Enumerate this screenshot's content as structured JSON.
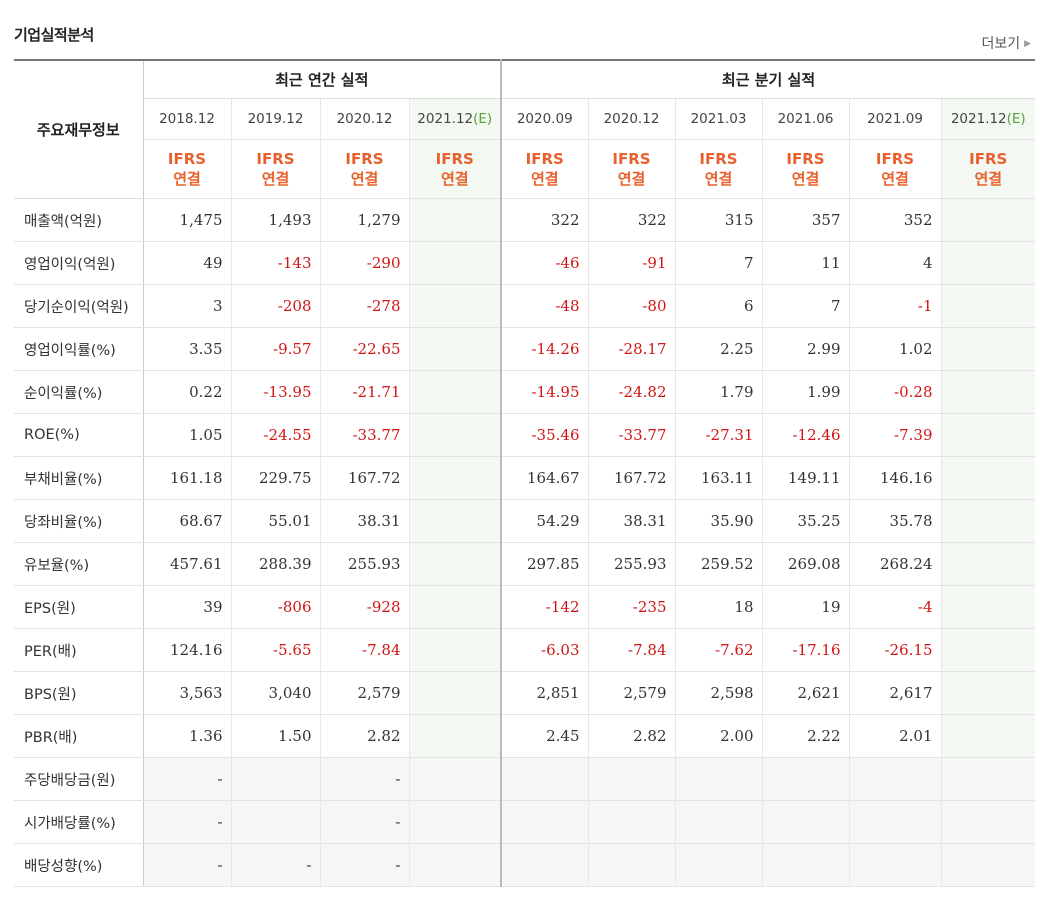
{
  "section_title": "기업실적분석",
  "more_label": "더보기",
  "header": {
    "row_label": "주요재무정보",
    "annual_label": "최근 연간 실적",
    "quarter_label": "최근 분기 실적",
    "annual_periods": [
      "2018.12",
      "2019.12",
      "2020.12",
      "2021.12"
    ],
    "quarter_periods": [
      "2020.09",
      "2020.12",
      "2021.03",
      "2021.06",
      "2021.09",
      "2021.12"
    ],
    "estimate_suffix": "(E)",
    "ifrs_top": "IFRS",
    "ifrs_bottom": "연결"
  },
  "rows": [
    {
      "label": "매출액(억원)",
      "annual": [
        "1,475",
        "1,493",
        "1,279",
        ""
      ],
      "quarter": [
        "322",
        "322",
        "315",
        "357",
        "352",
        ""
      ]
    },
    {
      "label": "영업이익(억원)",
      "annual": [
        "49",
        "-143",
        "-290",
        ""
      ],
      "quarter": [
        "-46",
        "-91",
        "7",
        "11",
        "4",
        ""
      ]
    },
    {
      "label": "당기순이익(억원)",
      "annual": [
        "3",
        "-208",
        "-278",
        ""
      ],
      "quarter": [
        "-48",
        "-80",
        "6",
        "7",
        "-1",
        ""
      ]
    },
    {
      "label": "영업이익률(%)",
      "annual": [
        "3.35",
        "-9.57",
        "-22.65",
        ""
      ],
      "quarter": [
        "-14.26",
        "-28.17",
        "2.25",
        "2.99",
        "1.02",
        ""
      ]
    },
    {
      "label": "순이익률(%)",
      "annual": [
        "0.22",
        "-13.95",
        "-21.71",
        ""
      ],
      "quarter": [
        "-14.95",
        "-24.82",
        "1.79",
        "1.99",
        "-0.28",
        ""
      ]
    },
    {
      "label": "ROE(%)",
      "annual": [
        "1.05",
        "-24.55",
        "-33.77",
        ""
      ],
      "quarter": [
        "-35.46",
        "-33.77",
        "-27.31",
        "-12.46",
        "-7.39",
        ""
      ]
    },
    {
      "label": "부채비율(%)",
      "annual": [
        "161.18",
        "229.75",
        "167.72",
        ""
      ],
      "quarter": [
        "164.67",
        "167.72",
        "163.11",
        "149.11",
        "146.16",
        ""
      ]
    },
    {
      "label": "당좌비율(%)",
      "annual": [
        "68.67",
        "55.01",
        "38.31",
        ""
      ],
      "quarter": [
        "54.29",
        "38.31",
        "35.90",
        "35.25",
        "35.78",
        ""
      ]
    },
    {
      "label": "유보율(%)",
      "annual": [
        "457.61",
        "288.39",
        "255.93",
        ""
      ],
      "quarter": [
        "297.85",
        "255.93",
        "259.52",
        "269.08",
        "268.24",
        ""
      ]
    },
    {
      "label": "EPS(원)",
      "annual": [
        "39",
        "-806",
        "-928",
        ""
      ],
      "quarter": [
        "-142",
        "-235",
        "18",
        "19",
        "-4",
        ""
      ]
    },
    {
      "label": "PER(배)",
      "annual": [
        "124.16",
        "-5.65",
        "-7.84",
        ""
      ],
      "quarter": [
        "-6.03",
        "-7.84",
        "-7.62",
        "-17.16",
        "-26.15",
        ""
      ]
    },
    {
      "label": "BPS(원)",
      "annual": [
        "3,563",
        "3,040",
        "2,579",
        ""
      ],
      "quarter": [
        "2,851",
        "2,579",
        "2,598",
        "2,621",
        "2,617",
        ""
      ]
    },
    {
      "label": "PBR(배)",
      "annual": [
        "1.36",
        "1.50",
        "2.82",
        ""
      ],
      "quarter": [
        "2.45",
        "2.82",
        "2.00",
        "2.22",
        "2.01",
        ""
      ]
    },
    {
      "label": "주당배당금(원)",
      "annual": [
        "-",
        "",
        "-",
        ""
      ],
      "quarter": [
        "",
        "",
        "",
        "",
        "",
        ""
      ]
    },
    {
      "label": "시가배당률(%)",
      "annual": [
        "-",
        "",
        "-",
        ""
      ],
      "quarter": [
        "",
        "",
        "",
        "",
        "",
        ""
      ]
    },
    {
      "label": "배당성향(%)",
      "annual": [
        "-",
        "-",
        "-",
        ""
      ],
      "quarter": [
        "",
        "",
        "",
        "",
        "",
        ""
      ]
    }
  ],
  "colors": {
    "negative": "#d01515",
    "ifrs": "#e8612c",
    "estimate_bg": "#f3f8f3",
    "estimate_mark": "#59a13a"
  }
}
